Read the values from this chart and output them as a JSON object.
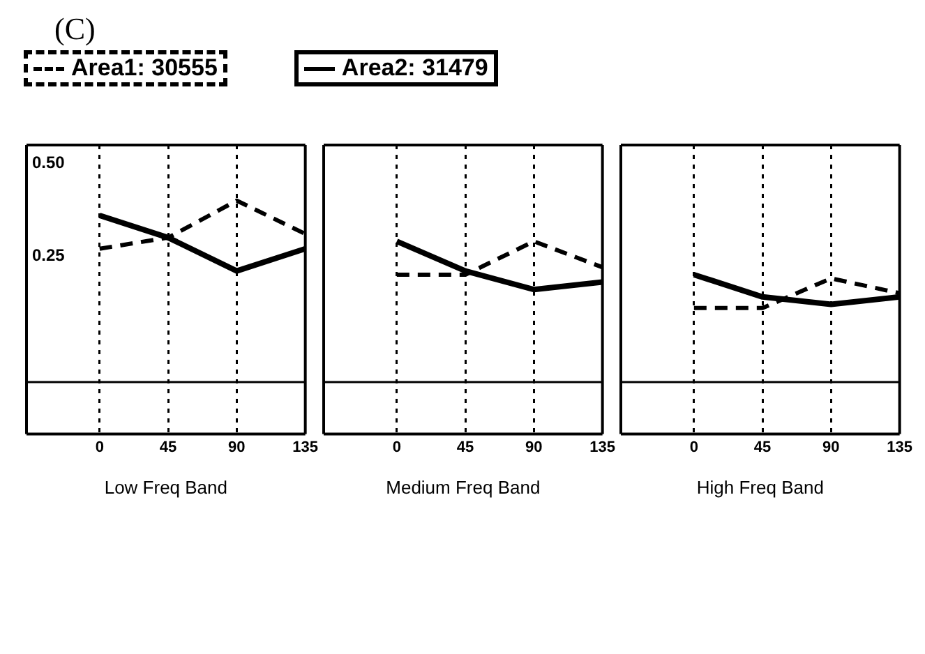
{
  "chart_data": [
    {
      "type": "line",
      "title": "(C)",
      "xlabel": "Low Freq Band",
      "x": [
        0,
        45,
        90,
        135
      ],
      "xlim": [
        -48,
        135
      ],
      "xticks": [
        0,
        45,
        90,
        135
      ],
      "ylim": [
        -0.23,
        0.55
      ],
      "yticks": [
        {
          "value": 0.5,
          "label": "0.50"
        },
        {
          "value": 0.25,
          "label": "0.25"
        }
      ],
      "grid": "x",
      "legend": "top",
      "marker": "none",
      "ref_lines": [
        {
          "axis": "y",
          "value": -0.09,
          "color": "#000000",
          "line_style": "solid"
        }
      ],
      "series": [
        {
          "name": "Area1: 30555",
          "color": "#000000",
          "line_style": "dashed",
          "values": [
            0.27,
            0.3,
            0.4,
            0.31
          ]
        },
        {
          "name": "Area2: 31479",
          "color": "#000000",
          "line_style": "solid",
          "values": [
            0.36,
            0.3,
            0.21,
            0.27
          ]
        }
      ]
    },
    {
      "type": "line",
      "xlabel": "Medium Freq Band",
      "x": [
        0,
        45,
        90,
        135
      ],
      "xlim": [
        -48,
        135
      ],
      "xticks": [
        0,
        45,
        90,
        135
      ],
      "ylim": [
        -0.23,
        0.55
      ],
      "grid": "x",
      "marker": "none",
      "tick_labels": "x",
      "ref_lines": [
        {
          "axis": "y",
          "value": -0.09,
          "color": "#000000",
          "line_style": "solid"
        }
      ],
      "series": [
        {
          "color": "#000000",
          "line_style": "dashed",
          "values": [
            0.2,
            0.2,
            0.29,
            0.22
          ]
        },
        {
          "color": "#000000",
          "line_style": "solid",
          "values": [
            0.29,
            0.21,
            0.16,
            0.18
          ]
        }
      ]
    },
    {
      "type": "line",
      "xlabel": "High Freq Band",
      "x": [
        0,
        45,
        90,
        135
      ],
      "xlim": [
        -48,
        135
      ],
      "xticks": [
        0,
        45,
        90,
        135
      ],
      "ylim": [
        -0.23,
        0.55
      ],
      "grid": "x",
      "marker": "none",
      "tick_labels": "x",
      "ref_lines": [
        {
          "axis": "y",
          "value": -0.09,
          "color": "#000000",
          "line_style": "solid"
        }
      ],
      "series": [
        {
          "color": "#000000",
          "line_style": "dashed",
          "values": [
            0.11,
            0.11,
            0.19,
            0.15
          ]
        },
        {
          "color": "#000000",
          "line_style": "solid",
          "values": [
            0.2,
            0.14,
            0.12,
            0.14
          ]
        }
      ]
    }
  ]
}
